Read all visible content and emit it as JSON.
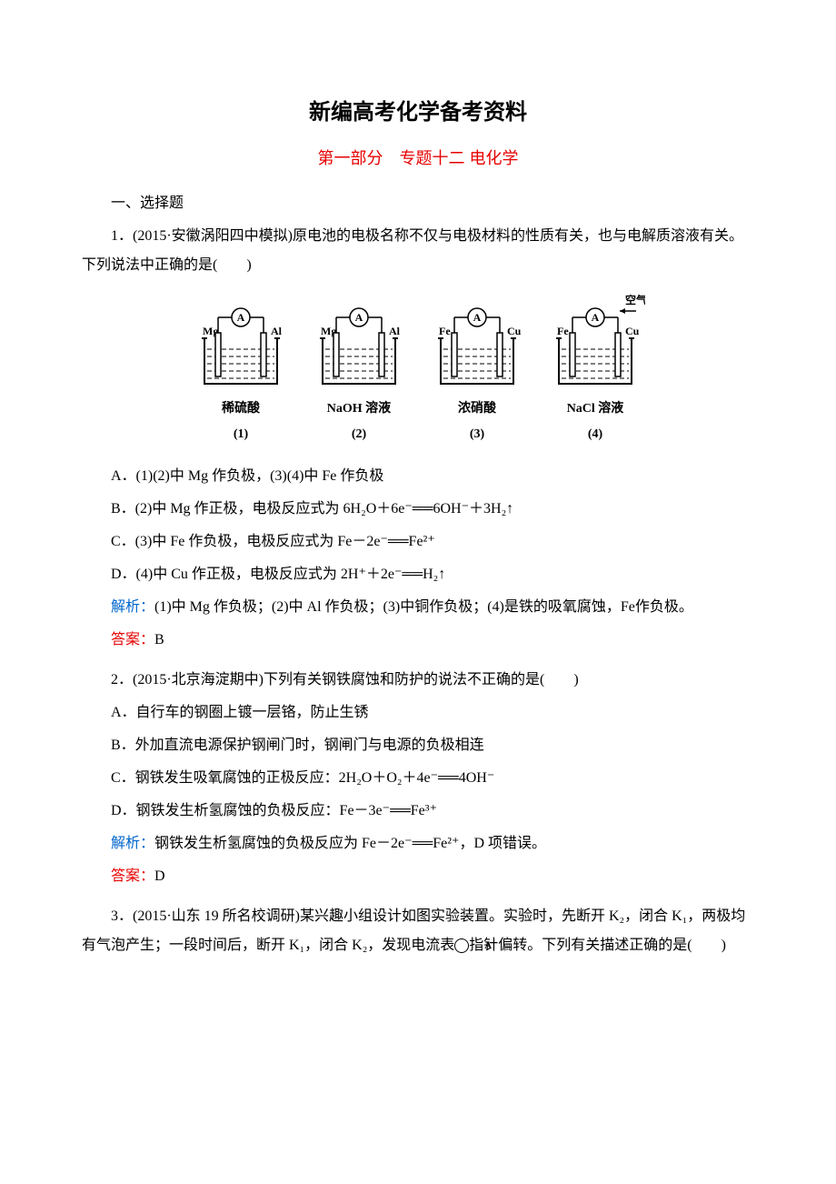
{
  "title": "新编高考化学备考资料",
  "subtitle": "第一部分　专题十二  电化学",
  "section_header": "一、选择题",
  "q1": {
    "stem": "1．(2015·安徽涡阳四中模拟)原电池的电极名称不仅与电极材料的性质有关，也与电解质溶液有关。下列说法中正确的是(　　)",
    "beakers": [
      {
        "left_el": "Mg",
        "right_el": "Al",
        "label": "稀硫酸",
        "num": "(1)",
        "air": false
      },
      {
        "left_el": "Mg",
        "right_el": "Al",
        "label": "NaOH 溶液",
        "num": "(2)",
        "air": false
      },
      {
        "left_el": "Fe",
        "right_el": "Cu",
        "label": "浓硝酸",
        "num": "(3)",
        "air": false
      },
      {
        "left_el": "Fe",
        "right_el": "Cu",
        "label": "NaCl 溶液",
        "num": "(4)",
        "air": true
      }
    ],
    "air_label": "空气",
    "options": {
      "A": "A．(1)(2)中 Mg 作负极，(3)(4)中 Fe 作负极",
      "B": "B．(2)中 Mg 作正极，电极反应式为 6H₂O＋6e⁻══6OH⁻＋3H₂↑",
      "C": "C．(3)中 Fe 作负极，电极反应式为 Fe－2e⁻══Fe²⁺",
      "D": "D．(4)中 Cu 作正极，电极反应式为 2H⁺＋2e⁻══H₂↑"
    },
    "analysis_label": "解析：",
    "analysis": "(1)中 Mg 作负极；(2)中 Al 作负极；(3)中铜作负极；(4)是铁的吸氧腐蚀，Fe作负极。",
    "answer_label": "答案：",
    "answer": "B"
  },
  "q2": {
    "stem": "2．(2015·北京海淀期中)下列有关钢铁腐蚀和防护的说法不正确的是(　　)",
    "options": {
      "A": "A．自行车的钢圈上镀一层铬，防止生锈",
      "B": "B．外加直流电源保护钢闸门时，钢闸门与电源的负极相连",
      "C": "C．钢铁发生吸氧腐蚀的正极反应：2H₂O＋O₂＋4e⁻══4OH⁻",
      "D": "D．钢铁发生析氢腐蚀的负极反应：Fe－3e⁻══Fe³⁺"
    },
    "analysis_label": "解析：",
    "analysis": "钢铁发生析氢腐蚀的负极反应为 Fe－2e⁻══Fe²⁺，D 项错误。",
    "answer_label": "答案：",
    "answer": "D"
  },
  "q3": {
    "stem_part1": "3．(2015·山东 19 所名校调研)某兴趣小组设计如图实验装置。实验时，先断开 K₂，闭合 K₁，两极均有气泡产生；一段时间后，断开 K₁，闭合 K₂，发现电流表",
    "stem_part2": "指针偏转。下列有关描述正确的是(　　)",
    "ammeter_symbol": "A"
  },
  "colors": {
    "title_color": "#000000",
    "subtitle_color": "#e60000",
    "analysis_color": "#0066cc",
    "answer_color": "#e60000",
    "background": "#ffffff"
  }
}
